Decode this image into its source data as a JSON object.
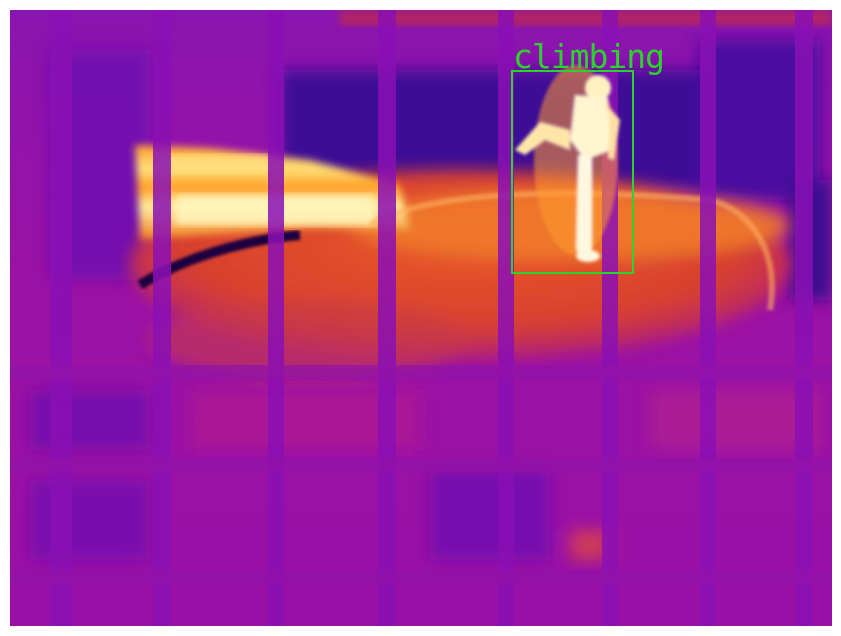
{
  "image": {
    "kind": "thermal-camera-frame",
    "palette": "ironbow",
    "colors": {
      "background_purple": "#9a10a8",
      "cold_blue": "#4a0a9a",
      "warm_orange": "#e0502a",
      "hot_yellow": "#ffd83a",
      "hottest_white": "#fff6d8",
      "detection_green": "#2bd42b"
    }
  },
  "detection": {
    "label": "climbing"
  }
}
